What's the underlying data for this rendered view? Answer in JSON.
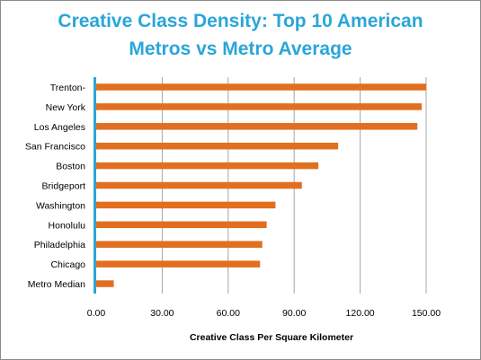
{
  "chart_data": {
    "type": "bar",
    "orientation": "horizontal",
    "title_lines": [
      "Creative Class Density: Top 10 American",
      "Metros vs Metro Average"
    ],
    "categories": [
      "Trenton-",
      "New York",
      "Los Angeles",
      "San Francisco",
      "Boston",
      "Bridgeport",
      "Washington",
      "Honolulu",
      "Philadelphia",
      "Chicago",
      "Metro Median"
    ],
    "values": [
      150.0,
      148.0,
      146.0,
      110.0,
      101.0,
      93.5,
      81.5,
      77.5,
      75.5,
      74.5,
      8.0
    ],
    "xlabel": "Creative Class  Per Square  Kilometer",
    "ylabel": "",
    "xlim": [
      0,
      150
    ],
    "xticks": [
      "0.00",
      "30.00",
      "60.00",
      "90.00",
      "120.00",
      "150.00"
    ],
    "grid": "vertical",
    "bar_color": "#e26f1f",
    "axis_color": "#2aa6d9",
    "title_color": "#2aa6d9"
  }
}
